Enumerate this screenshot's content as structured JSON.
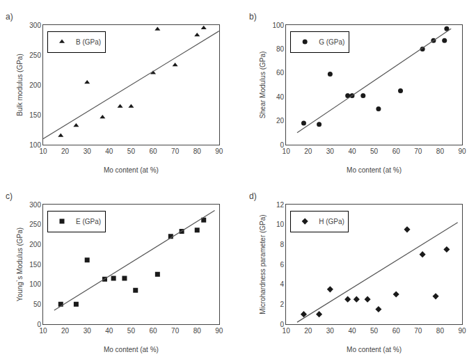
{
  "chart_data": [
    {
      "type": "scatter",
      "title": "a)",
      "xlabel": "Mo content (at %)",
      "ylabel": "Bulk modulus (GPa)",
      "xlim": [
        10,
        90
      ],
      "xticks": [
        10,
        20,
        30,
        40,
        50,
        60,
        70,
        80,
        90
      ],
      "ylim": [
        100,
        300
      ],
      "yticks": [
        100,
        150,
        200,
        250,
        300
      ],
      "grid": false,
      "legend": "upper left",
      "series": [
        {
          "name": "B (GPa)",
          "type": "scatter",
          "marker": "triangle-up",
          "color": "#1a1a1a",
          "x": [
            18,
            25,
            30,
            37,
            45,
            50,
            60,
            62,
            70,
            80,
            83
          ],
          "values": [
            115,
            132,
            204,
            146,
            164,
            164,
            220,
            293,
            233,
            283,
            295
          ]
        },
        {
          "type": "line",
          "line_style": "solid",
          "color": "#555555",
          "x": [
            10,
            90
          ],
          "values": [
            110,
            290
          ]
        }
      ]
    },
    {
      "type": "scatter",
      "title": "b)",
      "xlabel": "Mo content (at %)",
      "ylabel": "Shear Modulus (GPa)",
      "xlim": [
        10,
        90
      ],
      "xticks": [
        10,
        20,
        30,
        40,
        50,
        60,
        70,
        80,
        90
      ],
      "ylim": [
        0,
        100
      ],
      "yticks": [
        0,
        20,
        40,
        60,
        80,
        100
      ],
      "grid": false,
      "legend": "upper left",
      "series": [
        {
          "name": "G (GPa)",
          "type": "scatter",
          "marker": "circle",
          "color": "#1a1a1a",
          "x": [
            18,
            25,
            30,
            38,
            40,
            45,
            52,
            62,
            72,
            77,
            82,
            83
          ],
          "values": [
            18,
            17,
            59,
            41,
            41,
            41,
            30,
            45,
            80,
            87,
            87,
            97
          ]
        },
        {
          "type": "line",
          "line_style": "solid",
          "color": "#555555",
          "x": [
            15,
            85
          ],
          "values": [
            10,
            97
          ]
        }
      ]
    },
    {
      "type": "scatter",
      "title": "c)",
      "xlabel": "Mo content (at %)",
      "ylabel": "Young`s Modulus (GPa)",
      "xlim": [
        10,
        90
      ],
      "xticks": [
        10,
        20,
        30,
        40,
        50,
        60,
        70,
        80,
        90
      ],
      "ylim": [
        0,
        300
      ],
      "yticks": [
        0,
        50,
        100,
        150,
        200,
        250,
        300
      ],
      "grid": false,
      "legend": "upper left",
      "series": [
        {
          "name": "E (GPa)",
          "type": "scatter",
          "marker": "square",
          "color": "#1a1a1a",
          "x": [
            18,
            25,
            30,
            38,
            42,
            47,
            52,
            62,
            68,
            73,
            80,
            83
          ],
          "values": [
            50,
            50,
            161,
            113,
            115,
            115,
            85,
            125,
            220,
            233,
            236,
            261
          ]
        },
        {
          "type": "line",
          "line_style": "solid",
          "color": "#555555",
          "x": [
            15,
            88
          ],
          "values": [
            35,
            285
          ]
        }
      ]
    },
    {
      "type": "scatter",
      "title": "d)",
      "xlabel": "Mo content (at %)",
      "ylabel": "Microhardness parameter (GPa)",
      "xlim": [
        10,
        90
      ],
      "xticks": [
        10,
        20,
        30,
        40,
        50,
        60,
        70,
        80,
        90
      ],
      "ylim": [
        0,
        12
      ],
      "yticks": [
        0,
        2,
        4,
        6,
        8,
        10,
        12
      ],
      "grid": false,
      "legend": "upper left",
      "series": [
        {
          "name": "H (GPa)",
          "type": "scatter",
          "marker": "diamond",
          "color": "#1a1a1a",
          "x": [
            18,
            25,
            30,
            38,
            42,
            47,
            52,
            60,
            65,
            72,
            78,
            83
          ],
          "values": [
            1.0,
            1.0,
            3.5,
            2.5,
            2.5,
            2.5,
            1.5,
            3.0,
            9.5,
            7.0,
            2.8,
            7.5
          ]
        },
        {
          "type": "line",
          "line_style": "solid",
          "color": "#555555",
          "x": [
            15,
            88
          ],
          "values": [
            0.2,
            10.2
          ]
        }
      ]
    }
  ]
}
